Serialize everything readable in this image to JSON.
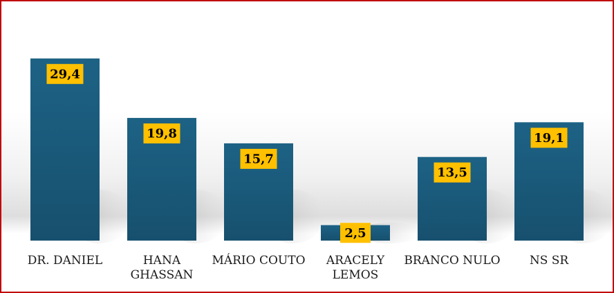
{
  "chart_data": {
    "type": "bar",
    "title": "",
    "xlabel": "",
    "ylabel": "",
    "categories": [
      [
        "DR. DANIEL"
      ],
      [
        "HANA",
        "GHASSAN"
      ],
      [
        "MÁRIO COUTO"
      ],
      [
        "ARACELY",
        "LEMOS"
      ],
      [
        "BRANCO NULO"
      ],
      [
        "NS SR"
      ]
    ],
    "values": [
      29.4,
      19.8,
      15.7,
      2.5,
      13.5,
      19.1
    ],
    "value_labels": [
      "29,4",
      "19,8",
      "15,7",
      "2,5",
      "13,5",
      "19,1"
    ],
    "ylim": [
      0,
      30.6
    ],
    "grid": false,
    "legend": "none",
    "colors": {
      "bar_top": "#1d6285",
      "bar_bottom": "#17506e",
      "label_box": "#ffc000",
      "border": "#c00000"
    }
  }
}
